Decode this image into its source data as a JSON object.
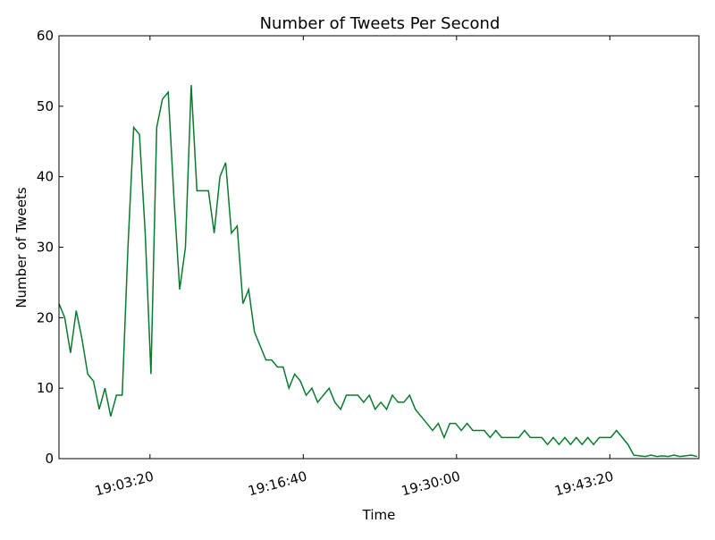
{
  "chart_data": {
    "type": "line",
    "title": "Number of Tweets Per Second",
    "xlabel": "Time",
    "ylabel": "Number of Tweets",
    "x": [
      "18:55:25",
      "18:55:55",
      "18:56:25",
      "18:56:55",
      "18:57:25",
      "18:57:55",
      "18:58:25",
      "18:58:55",
      "18:59:25",
      "18:59:55",
      "19:00:25",
      "19:00:55",
      "19:01:25",
      "19:01:55",
      "19:02:25",
      "19:02:55",
      "19:03:25",
      "19:03:55",
      "19:04:25",
      "19:04:55",
      "19:05:25",
      "19:05:55",
      "19:06:25",
      "19:06:55",
      "19:07:25",
      "19:07:55",
      "19:08:25",
      "19:08:55",
      "19:09:25",
      "19:09:55",
      "19:10:25",
      "19:10:55",
      "19:11:25",
      "19:11:55",
      "19:12:25",
      "19:12:55",
      "19:13:25",
      "19:13:55",
      "19:14:25",
      "19:14:55",
      "19:15:25",
      "19:15:55",
      "19:16:25",
      "19:16:55",
      "19:17:25",
      "19:17:55",
      "19:18:25",
      "19:18:55",
      "19:19:25",
      "19:19:55",
      "19:20:25",
      "19:20:55",
      "19:21:25",
      "19:21:55",
      "19:22:25",
      "19:22:55",
      "19:23:25",
      "19:23:55",
      "19:24:25",
      "19:24:55",
      "19:25:25",
      "19:25:55",
      "19:26:25",
      "19:26:55",
      "19:27:25",
      "19:27:55",
      "19:28:25",
      "19:28:55",
      "19:29:25",
      "19:29:55",
      "19:30:25",
      "19:30:55",
      "19:31:25",
      "19:31:55",
      "19:32:25",
      "19:32:55",
      "19:33:25",
      "19:33:55",
      "19:34:25",
      "19:34:55",
      "19:35:25",
      "19:35:55",
      "19:36:25",
      "19:36:55",
      "19:37:25",
      "19:37:55",
      "19:38:25",
      "19:38:55",
      "19:39:25",
      "19:39:55",
      "19:40:25",
      "19:40:55",
      "19:41:25",
      "19:41:55",
      "19:42:25",
      "19:42:55",
      "19:43:25",
      "19:43:55",
      "19:44:25",
      "19:44:55",
      "19:45:25",
      "19:45:55",
      "19:46:25",
      "19:46:55",
      "19:47:25",
      "19:47:55",
      "19:48:25",
      "19:48:55",
      "19:49:25",
      "19:49:55",
      "19:50:25",
      "19:50:55"
    ],
    "series": [
      {
        "name": "Tweets",
        "color": "#0b7a2e",
        "values": [
          22,
          20,
          15,
          21,
          17,
          12,
          11,
          7,
          10,
          6,
          9,
          9,
          30,
          47,
          46,
          32,
          12,
          47,
          51,
          52,
          37,
          24,
          30,
          53,
          38,
          38,
          38,
          32,
          40,
          42,
          32,
          33,
          22,
          24,
          18,
          16,
          14,
          14,
          13,
          13,
          10,
          12,
          11,
          9,
          10,
          8,
          9,
          10,
          8,
          7,
          9,
          9,
          9,
          8,
          9,
          7,
          8,
          7,
          9,
          8,
          8,
          9,
          7,
          6,
          5,
          4,
          5,
          3,
          5,
          5,
          4,
          5,
          4,
          4,
          4,
          3,
          4,
          3,
          3,
          3,
          3,
          4,
          3,
          3,
          3,
          2,
          3,
          2,
          3,
          2,
          3,
          2,
          3,
          2,
          3,
          3,
          3,
          4,
          3,
          2,
          0.5,
          0.4,
          0.3,
          0.5,
          0.3,
          0.4,
          0.3,
          0.5,
          0.3,
          0.4,
          0.5,
          0.3
        ]
      }
    ],
    "xlim": [
      "18:55:25",
      "19:51:05"
    ],
    "xticks": [
      "19:03:20",
      "19:16:40",
      "19:30:00",
      "19:43:20"
    ],
    "ylim": [
      0,
      60
    ],
    "yticks": [
      0,
      10,
      20,
      30,
      40,
      50,
      60
    ]
  }
}
